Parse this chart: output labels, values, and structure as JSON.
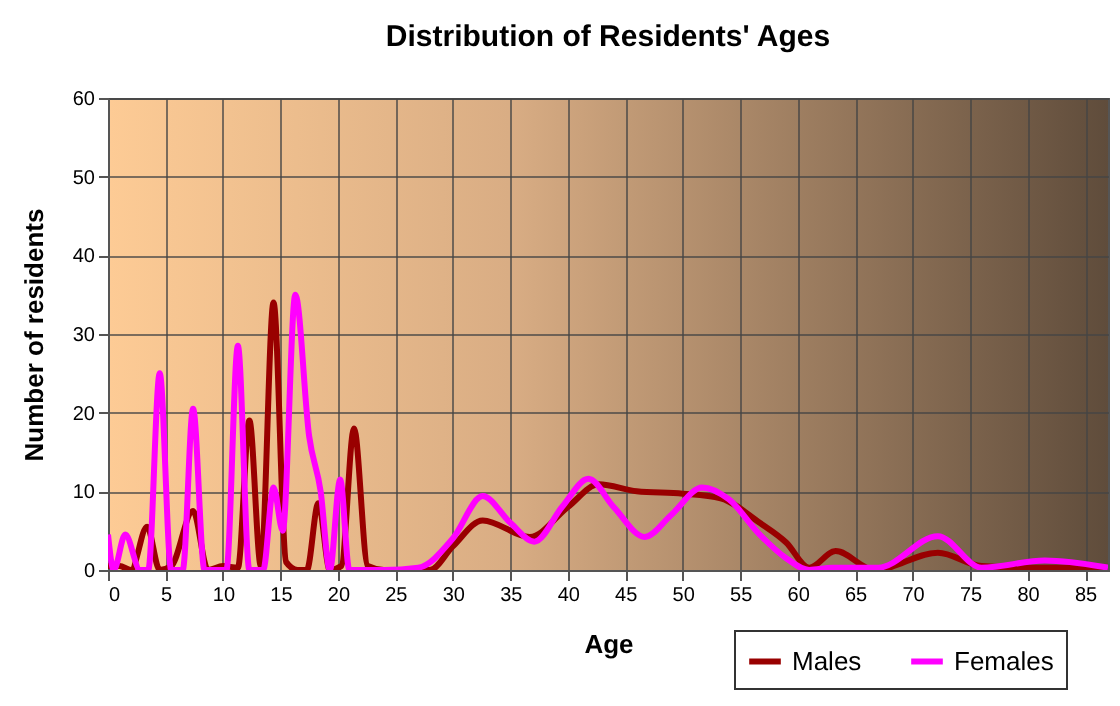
{
  "chart_data": {
    "type": "line",
    "title": "Distribution of Residents' Ages",
    "xlabel": "Age",
    "ylabel": "Number of residents",
    "xlim": [
      0,
      87
    ],
    "ylim": [
      0,
      60
    ],
    "xticks": [
      0,
      5,
      10,
      15,
      20,
      25,
      30,
      35,
      40,
      45,
      50,
      55,
      60,
      65,
      70,
      75,
      80,
      85
    ],
    "yticks": [
      0,
      10,
      20,
      30,
      40,
      50,
      60
    ],
    "grid": true,
    "legend": "bottom right",
    "series": [
      {
        "name": "Males",
        "color": "#990000",
        "x": [
          0,
          1,
          2,
          3.4,
          4.5,
          5.5,
          7.4,
          8.7,
          10,
          11.3,
          12.3,
          13.3,
          14.4,
          15.5,
          16.5,
          17.3,
          18.3,
          19.3,
          20.3,
          21.4,
          22.6,
          24,
          28,
          30,
          32.6,
          36.7,
          40,
          42.7,
          46,
          50,
          53.3,
          56.7,
          59,
          61,
          63.3,
          66.7,
          72.2,
          76,
          80,
          87
        ],
        "values": [
          0.5,
          0.5,
          0,
          5.5,
          0,
          0.5,
          7.5,
          0,
          0.5,
          0.3,
          19,
          0.5,
          34,
          1,
          0,
          0,
          8.5,
          0,
          0.5,
          18,
          0.5,
          0,
          0,
          3,
          6.3,
          4.2,
          8,
          10.9,
          10,
          9.7,
          9.1,
          6,
          3.5,
          0.3,
          2.4,
          0,
          2.2,
          0.5,
          0.3,
          0.3
        ]
      },
      {
        "name": "Females",
        "color": "#ff00ff",
        "x": [
          0,
          0.5,
          1.5,
          2.8,
          3.5,
          4.5,
          5.5,
          6.5,
          7.4,
          8.4,
          10.3,
          11.3,
          12.3,
          13.5,
          14.4,
          15.2,
          16.3,
          17.5,
          18.5,
          19.3,
          20.2,
          21,
          24,
          27,
          30,
          32.6,
          35,
          37.1,
          39.5,
          41.8,
          44,
          46.7,
          49,
          51.7,
          54,
          56.7,
          59,
          61,
          63,
          67,
          72.2,
          76,
          81.5,
          87
        ],
        "values": [
          4.5,
          0,
          4.5,
          0,
          0,
          25,
          0,
          0,
          20.5,
          0,
          0,
          28.5,
          0,
          0,
          10.5,
          5,
          35,
          17,
          10,
          0,
          11.5,
          0,
          0,
          0.3,
          4,
          9.4,
          6,
          3.6,
          8,
          11.6,
          8,
          4.2,
          7,
          10.5,
          9,
          4.5,
          1.5,
          0,
          0.3,
          0.3,
          4.3,
          0.3,
          1.2,
          0.3
        ]
      }
    ]
  }
}
